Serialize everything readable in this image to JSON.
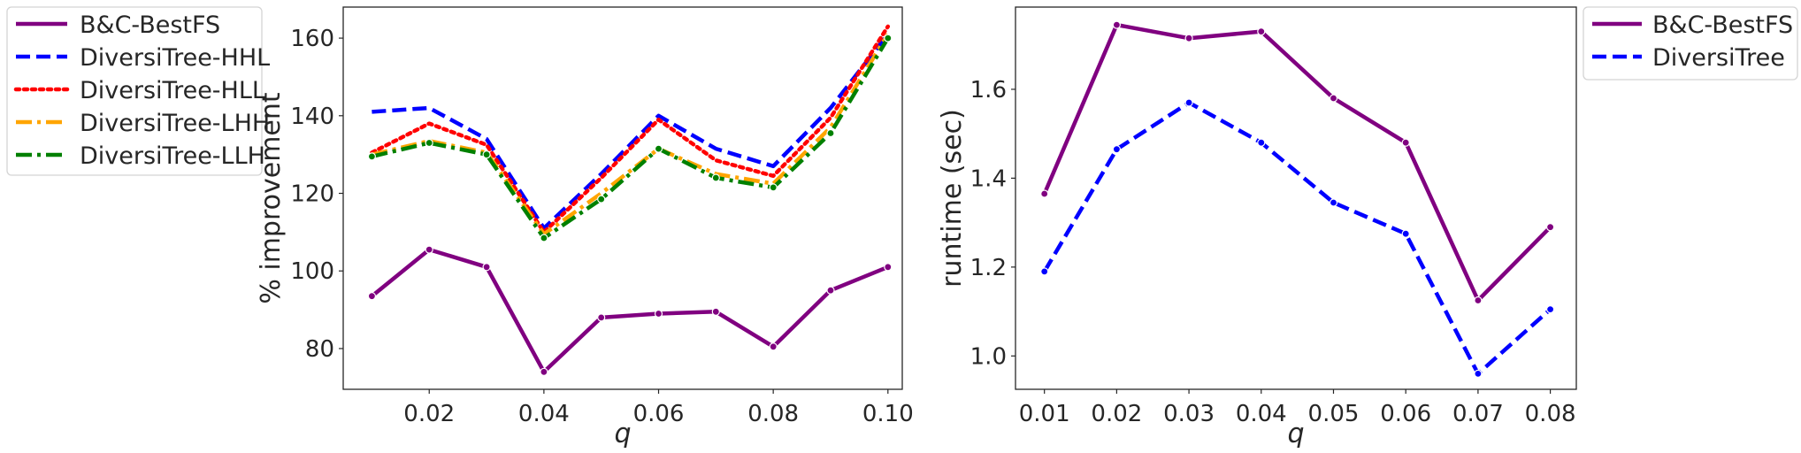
{
  "chart_data": [
    {
      "type": "line",
      "xlabel": "q",
      "ylabel": "% improvement",
      "x": [
        0.01,
        0.02,
        0.03,
        0.04,
        0.05,
        0.06,
        0.07,
        0.08,
        0.09,
        0.1
      ],
      "xlim": [
        0.005,
        0.1025
      ],
      "ylim": [
        69.5,
        168
      ],
      "xticks": [
        0.02,
        0.04,
        0.06,
        0.08,
        0.1
      ],
      "xtick_labels": [
        "0.02",
        "0.04",
        "0.06",
        "0.08",
        "0.10"
      ],
      "yticks": [
        80,
        100,
        120,
        140,
        160
      ],
      "ytick_labels": [
        "80",
        "100",
        "120",
        "140",
        "160"
      ],
      "grid": false,
      "legend_position": "outside-left",
      "series": [
        {
          "name": "B&C-BestFS",
          "color": "#800080",
          "dash": "solid",
          "markers": true,
          "values": [
            93.5,
            105.5,
            101,
            74,
            88,
            89,
            89.5,
            80.5,
            95,
            101
          ]
        },
        {
          "name": "DiversiTree-HHL",
          "color": "#0000ff",
          "dash": "dashed",
          "markers": false,
          "values": [
            141,
            142,
            134,
            111,
            125,
            140,
            131.5,
            127,
            142,
            161
          ]
        },
        {
          "name": "DiversiTree-HLL",
          "color": "#ff0000",
          "dash": "dotted",
          "markers": false,
          "values": [
            130.5,
            138,
            132.5,
            110,
            124,
            139,
            128.5,
            124.5,
            139.5,
            163
          ]
        },
        {
          "name": "DiversiTree-LHH",
          "color": "#ffa500",
          "dash": "dashdot",
          "markers": false,
          "values": [
            130,
            133.5,
            130.5,
            109.5,
            120,
            131.5,
            125,
            122.5,
            137,
            161
          ]
        },
        {
          "name": "DiversiTree-LLH",
          "color": "#008000",
          "dash": "dashdot",
          "markers": true,
          "values": [
            129.5,
            133,
            130,
            108.5,
            118.5,
            131.5,
            124,
            121.5,
            135.5,
            160
          ]
        }
      ]
    },
    {
      "type": "line",
      "xlabel": "q",
      "ylabel": "runtime (sec)",
      "x": [
        0.01,
        0.02,
        0.03,
        0.04,
        0.05,
        0.06,
        0.07,
        0.08
      ],
      "xlim": [
        0.006,
        0.0836
      ],
      "ylim": [
        0.925,
        1.785
      ],
      "xticks": [
        0.01,
        0.02,
        0.03,
        0.04,
        0.05,
        0.06,
        0.07,
        0.08
      ],
      "xtick_labels": [
        "0.01",
        "0.02",
        "0.03",
        "0.04",
        "0.05",
        "0.06",
        "0.07",
        "0.08"
      ],
      "yticks": [
        1.0,
        1.2,
        1.4,
        1.6
      ],
      "ytick_labels": [
        "1.0",
        "1.2",
        "1.4",
        "1.6"
      ],
      "grid": false,
      "legend_position": "outside-right",
      "series": [
        {
          "name": "B&C-BestFS",
          "color": "#800080",
          "dash": "solid",
          "markers": true,
          "values": [
            1.365,
            1.745,
            1.715,
            1.73,
            1.58,
            1.48,
            1.125,
            1.29
          ]
        },
        {
          "name": "DiversiTree",
          "color": "#0000ff",
          "dash": "dashed",
          "markers": true,
          "values": [
            1.19,
            1.465,
            1.57,
            1.48,
            1.345,
            1.275,
            0.96,
            1.105
          ]
        }
      ]
    }
  ]
}
